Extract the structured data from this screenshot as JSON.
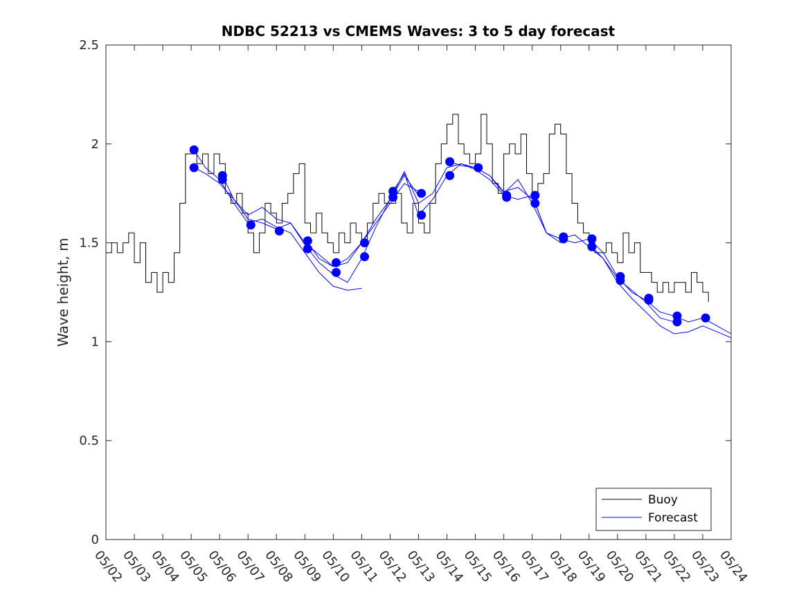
{
  "chart_data": {
    "type": "line",
    "title": "NDBC 52213 vs CMEMS Waves: 3 to 5 day forecast",
    "xlabel": "",
    "ylabel": "Wave height, m",
    "xlim": [
      "05/02",
      "05/24"
    ],
    "ylim": [
      0,
      2.5
    ],
    "x_unit": "days (May)",
    "x_ticks": [
      2,
      3,
      4,
      5,
      6,
      7,
      8,
      9,
      10,
      11,
      12,
      13,
      14,
      15,
      16,
      17,
      18,
      19,
      20,
      21,
      22,
      23,
      24
    ],
    "x_tick_labels": [
      "05/02",
      "05/03",
      "05/04",
      "05/05",
      "05/06",
      "05/07",
      "05/08",
      "05/09",
      "05/10",
      "05/11",
      "05/12",
      "05/13",
      "05/14",
      "05/15",
      "05/16",
      "05/17",
      "05/18",
      "05/19",
      "05/20",
      "05/21",
      "05/22",
      "05/23",
      "05/24"
    ],
    "y_ticks": [
      0,
      0.5,
      1,
      1.5,
      2,
      2.5
    ],
    "y_tick_labels": [
      "0",
      "0.5",
      "1",
      "1.5",
      "2",
      "2.5"
    ],
    "grid": false,
    "legend": {
      "position": "bottom-right",
      "entries": [
        "Buoy",
        "Forecast"
      ]
    },
    "colors": {
      "buoy": "#000000",
      "forecast": "#0000ff"
    },
    "series": [
      {
        "name": "Buoy",
        "x": [
          2.0,
          2.2,
          2.4,
          2.6,
          2.8,
          3.0,
          3.2,
          3.4,
          3.6,
          3.8,
          4.0,
          4.2,
          4.4,
          4.6,
          4.8,
          5.0,
          5.2,
          5.4,
          5.6,
          5.8,
          6.0,
          6.2,
          6.4,
          6.6,
          6.8,
          7.0,
          7.2,
          7.4,
          7.6,
          7.8,
          8.0,
          8.2,
          8.4,
          8.6,
          8.8,
          9.0,
          9.2,
          9.4,
          9.6,
          9.8,
          10.0,
          10.2,
          10.4,
          10.6,
          10.8,
          11.0,
          11.2,
          11.4,
          11.6,
          11.8,
          12.0,
          12.2,
          12.4,
          12.6,
          12.8,
          13.0,
          13.2,
          13.4,
          13.6,
          13.8,
          14.0,
          14.2,
          14.4,
          14.6,
          14.8,
          15.0,
          15.2,
          15.4,
          15.6,
          15.8,
          16.0,
          16.2,
          16.4,
          16.6,
          16.8,
          17.0,
          17.2,
          17.4,
          17.6,
          17.8,
          18.0,
          18.2,
          18.4,
          18.6,
          18.8,
          19.0,
          19.2,
          19.4,
          19.6,
          19.8,
          20.0,
          20.2,
          20.4,
          20.6,
          20.8,
          21.0,
          21.2,
          21.4,
          21.6,
          21.8,
          22.0,
          22.2,
          22.4,
          22.6,
          22.8,
          23.0,
          23.2
        ],
        "values": [
          1.45,
          1.5,
          1.45,
          1.5,
          1.55,
          1.4,
          1.5,
          1.3,
          1.35,
          1.25,
          1.35,
          1.3,
          1.45,
          1.7,
          1.95,
          1.95,
          1.9,
          1.95,
          1.85,
          1.95,
          1.9,
          1.75,
          1.7,
          1.75,
          1.65,
          1.55,
          1.45,
          1.55,
          1.7,
          1.65,
          1.6,
          1.7,
          1.75,
          1.85,
          1.9,
          1.6,
          1.55,
          1.65,
          1.55,
          1.5,
          1.45,
          1.55,
          1.5,
          1.6,
          1.55,
          1.5,
          1.6,
          1.7,
          1.75,
          1.7,
          1.7,
          1.75,
          1.6,
          1.55,
          1.7,
          1.6,
          1.55,
          1.7,
          1.9,
          2.0,
          2.1,
          2.15,
          2.0,
          1.95,
          1.9,
          1.95,
          2.15,
          2.0,
          1.8,
          1.75,
          1.95,
          2.0,
          1.95,
          2.05,
          1.85,
          1.75,
          1.8,
          1.85,
          2.05,
          2.1,
          2.05,
          1.85,
          1.7,
          1.6,
          1.55,
          1.5,
          1.45,
          1.45,
          1.5,
          1.45,
          1.4,
          1.55,
          1.45,
          1.5,
          1.35,
          1.35,
          1.3,
          1.25,
          1.3,
          1.25,
          1.3,
          1.3,
          1.25,
          1.35,
          1.3,
          1.25,
          1.2
        ]
      },
      {
        "name": "Forecast",
        "runs": [
          {
            "x": [
              5.1,
              5.5,
              6.0,
              6.5,
              7.0,
              7.5,
              8.0,
              8.5,
              9.0,
              9.5,
              10.0,
              10.5,
              11.0,
              11.5,
              12.0,
              12.5,
              13.0
            ],
            "values": [
              1.88,
              1.85,
              1.8,
              1.72,
              1.62,
              1.6,
              1.57,
              1.6,
              1.5,
              1.44,
              1.38,
              1.4,
              1.5,
              1.6,
              1.7,
              1.8,
              1.76
            ]
          },
          {
            "x": [
              5.1,
              5.5,
              6.0,
              6.5,
              7.0,
              7.5,
              8.0,
              8.5,
              9.0,
              9.5,
              10.0,
              10.5,
              11.0
            ],
            "values": [
              1.97,
              1.88,
              1.82,
              1.7,
              1.6,
              1.62,
              1.58,
              1.55,
              1.45,
              1.35,
              1.28,
              1.26,
              1.27
            ]
          },
          {
            "x": [
              6.1,
              6.5,
              7.0,
              7.5,
              8.0,
              8.5,
              9.0,
              9.5,
              10.0,
              10.5,
              11.0,
              11.5,
              12.0,
              12.5,
              13.0
            ],
            "values": [
              1.84,
              1.72,
              1.64,
              1.68,
              1.62,
              1.6,
              1.49,
              1.4,
              1.34,
              1.3,
              1.42,
              1.58,
              1.72,
              1.84,
              1.74
            ]
          },
          {
            "x": [
              9.1,
              9.5,
              10.0,
              10.5,
              11.0,
              11.5,
              12.0,
              12.5,
              13.0,
              13.5,
              14.0,
              14.5,
              15.0,
              15.5,
              16.0,
              16.5,
              17.0
            ],
            "values": [
              1.5,
              1.42,
              1.38,
              1.42,
              1.5,
              1.62,
              1.72,
              1.86,
              1.7,
              1.75,
              1.88,
              1.9,
              1.88,
              1.84,
              1.76,
              1.78,
              1.72
            ]
          },
          {
            "x": [
              12.1,
              12.5,
              13.0,
              13.5,
              14.0,
              14.5,
              15.0,
              15.5,
              16.0,
              16.5,
              17.0,
              17.5,
              18.0
            ],
            "values": [
              1.76,
              1.85,
              1.64,
              1.72,
              1.84,
              1.9,
              1.87,
              1.82,
              1.74,
              1.72,
              1.74,
              1.55,
              1.5
            ]
          },
          {
            "x": [
              14.1,
              14.5,
              15.0,
              15.5,
              16.0,
              16.5,
              17.0,
              17.5,
              18.0,
              18.5,
              19.0,
              19.5,
              20.0,
              20.5,
              21.0,
              21.5,
              22.0
            ],
            "values": [
              1.91,
              1.89,
              1.88,
              1.84,
              1.75,
              1.82,
              1.7,
              1.55,
              1.52,
              1.54,
              1.48,
              1.42,
              1.32,
              1.26,
              1.2,
              1.12,
              1.1
            ]
          },
          {
            "x": [
              17.1,
              17.5,
              18.0,
              18.5,
              19.0,
              19.5,
              20.0,
              20.5,
              21.0,
              21.5,
              22.0,
              22.5,
              23.0,
              23.5,
              24.0
            ],
            "values": [
              1.7,
              1.55,
              1.52,
              1.5,
              1.52,
              1.45,
              1.33,
              1.25,
              1.21,
              1.15,
              1.13,
              1.1,
              1.12,
              1.08,
              1.04
            ]
          },
          {
            "x": [
              19.1,
              19.5,
              20.0,
              20.5,
              21.0,
              21.5,
              22.0,
              22.5,
              23.0,
              23.5,
              24.0
            ],
            "values": [
              1.48,
              1.42,
              1.3,
              1.22,
              1.15,
              1.08,
              1.04,
              1.05,
              1.08,
              1.05,
              1.02
            ]
          }
        ],
        "markers": [
          {
            "x": 5.1,
            "y": 1.97
          },
          {
            "x": 5.1,
            "y": 1.88
          },
          {
            "x": 6.1,
            "y": 1.84
          },
          {
            "x": 6.1,
            "y": 1.82
          },
          {
            "x": 7.1,
            "y": 1.59
          },
          {
            "x": 8.1,
            "y": 1.56
          },
          {
            "x": 9.1,
            "y": 1.51
          },
          {
            "x": 9.1,
            "y": 1.47
          },
          {
            "x": 10.1,
            "y": 1.4
          },
          {
            "x": 10.1,
            "y": 1.35
          },
          {
            "x": 11.1,
            "y": 1.5
          },
          {
            "x": 11.1,
            "y": 1.43
          },
          {
            "x": 12.1,
            "y": 1.76
          },
          {
            "x": 12.1,
            "y": 1.73
          },
          {
            "x": 13.1,
            "y": 1.75
          },
          {
            "x": 13.1,
            "y": 1.64
          },
          {
            "x": 14.1,
            "y": 1.91
          },
          {
            "x": 14.1,
            "y": 1.84
          },
          {
            "x": 15.1,
            "y": 1.88
          },
          {
            "x": 16.1,
            "y": 1.74
          },
          {
            "x": 16.1,
            "y": 1.73
          },
          {
            "x": 17.1,
            "y": 1.74
          },
          {
            "x": 17.1,
            "y": 1.7
          },
          {
            "x": 18.1,
            "y": 1.53
          },
          {
            "x": 18.1,
            "y": 1.52
          },
          {
            "x": 19.1,
            "y": 1.52
          },
          {
            "x": 19.1,
            "y": 1.48
          },
          {
            "x": 20.1,
            "y": 1.33
          },
          {
            "x": 20.1,
            "y": 1.31
          },
          {
            "x": 21.1,
            "y": 1.22
          },
          {
            "x": 21.1,
            "y": 1.21
          },
          {
            "x": 22.1,
            "y": 1.13
          },
          {
            "x": 22.1,
            "y": 1.1
          },
          {
            "x": 23.1,
            "y": 1.12
          }
        ]
      }
    ]
  }
}
